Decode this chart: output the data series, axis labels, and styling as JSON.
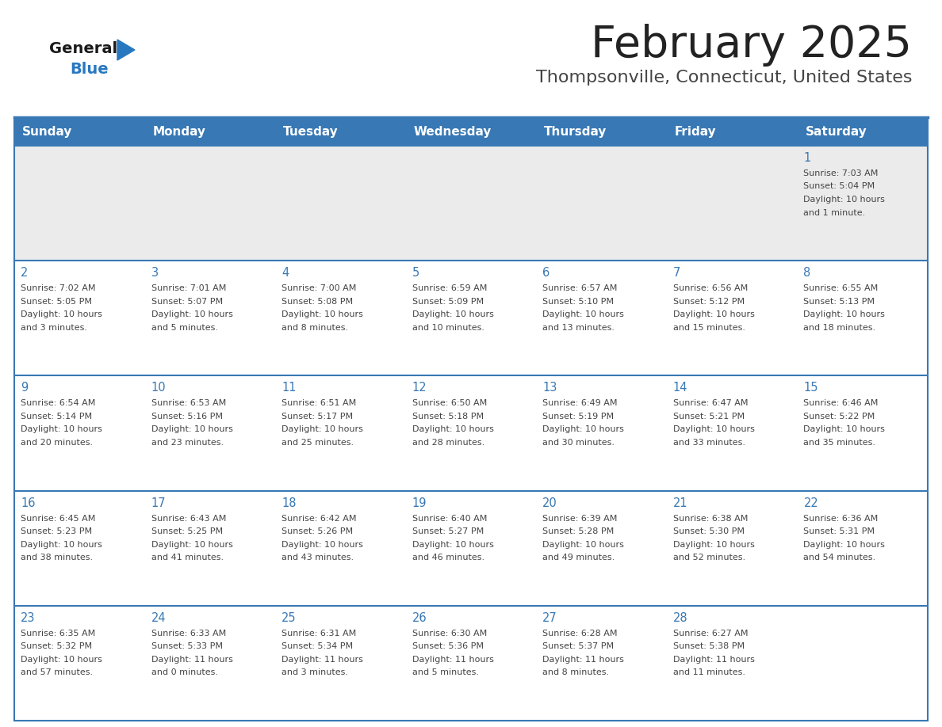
{
  "title": "February 2025",
  "subtitle": "Thompsonville, Connecticut, United States",
  "days_of_week": [
    "Sunday",
    "Monday",
    "Tuesday",
    "Wednesday",
    "Thursday",
    "Friday",
    "Saturday"
  ],
  "header_bg_color": "#3878b4",
  "header_text_color": "#ffffff",
  "cell_bg_color": "#ffffff",
  "row0_bg_color": "#ebebeb",
  "border_color": "#3878b4",
  "day_num_color": "#3878b4",
  "info_text_color": "#444444",
  "title_color": "#222222",
  "subtitle_color": "#444444",
  "background_color": "#ffffff",
  "logo_general_color": "#1a1a1a",
  "logo_blue_color": "#2878c0",
  "calendar_data": [
    {
      "day": 1,
      "col": 6,
      "row": 0,
      "sunrise": "7:03 AM",
      "sunset": "5:04 PM",
      "daylight": "10 hours and 1 minute."
    },
    {
      "day": 2,
      "col": 0,
      "row": 1,
      "sunrise": "7:02 AM",
      "sunset": "5:05 PM",
      "daylight": "10 hours and 3 minutes."
    },
    {
      "day": 3,
      "col": 1,
      "row": 1,
      "sunrise": "7:01 AM",
      "sunset": "5:07 PM",
      "daylight": "10 hours and 5 minutes."
    },
    {
      "day": 4,
      "col": 2,
      "row": 1,
      "sunrise": "7:00 AM",
      "sunset": "5:08 PM",
      "daylight": "10 hours and 8 minutes."
    },
    {
      "day": 5,
      "col": 3,
      "row": 1,
      "sunrise": "6:59 AM",
      "sunset": "5:09 PM",
      "daylight": "10 hours and 10 minutes."
    },
    {
      "day": 6,
      "col": 4,
      "row": 1,
      "sunrise": "6:57 AM",
      "sunset": "5:10 PM",
      "daylight": "10 hours and 13 minutes."
    },
    {
      "day": 7,
      "col": 5,
      "row": 1,
      "sunrise": "6:56 AM",
      "sunset": "5:12 PM",
      "daylight": "10 hours and 15 minutes."
    },
    {
      "day": 8,
      "col": 6,
      "row": 1,
      "sunrise": "6:55 AM",
      "sunset": "5:13 PM",
      "daylight": "10 hours and 18 minutes."
    },
    {
      "day": 9,
      "col": 0,
      "row": 2,
      "sunrise": "6:54 AM",
      "sunset": "5:14 PM",
      "daylight": "10 hours and 20 minutes."
    },
    {
      "day": 10,
      "col": 1,
      "row": 2,
      "sunrise": "6:53 AM",
      "sunset": "5:16 PM",
      "daylight": "10 hours and 23 minutes."
    },
    {
      "day": 11,
      "col": 2,
      "row": 2,
      "sunrise": "6:51 AM",
      "sunset": "5:17 PM",
      "daylight": "10 hours and 25 minutes."
    },
    {
      "day": 12,
      "col": 3,
      "row": 2,
      "sunrise": "6:50 AM",
      "sunset": "5:18 PM",
      "daylight": "10 hours and 28 minutes."
    },
    {
      "day": 13,
      "col": 4,
      "row": 2,
      "sunrise": "6:49 AM",
      "sunset": "5:19 PM",
      "daylight": "10 hours and 30 minutes."
    },
    {
      "day": 14,
      "col": 5,
      "row": 2,
      "sunrise": "6:47 AM",
      "sunset": "5:21 PM",
      "daylight": "10 hours and 33 minutes."
    },
    {
      "day": 15,
      "col": 6,
      "row": 2,
      "sunrise": "6:46 AM",
      "sunset": "5:22 PM",
      "daylight": "10 hours and 35 minutes."
    },
    {
      "day": 16,
      "col": 0,
      "row": 3,
      "sunrise": "6:45 AM",
      "sunset": "5:23 PM",
      "daylight": "10 hours and 38 minutes."
    },
    {
      "day": 17,
      "col": 1,
      "row": 3,
      "sunrise": "6:43 AM",
      "sunset": "5:25 PM",
      "daylight": "10 hours and 41 minutes."
    },
    {
      "day": 18,
      "col": 2,
      "row": 3,
      "sunrise": "6:42 AM",
      "sunset": "5:26 PM",
      "daylight": "10 hours and 43 minutes."
    },
    {
      "day": 19,
      "col": 3,
      "row": 3,
      "sunrise": "6:40 AM",
      "sunset": "5:27 PM",
      "daylight": "10 hours and 46 minutes."
    },
    {
      "day": 20,
      "col": 4,
      "row": 3,
      "sunrise": "6:39 AM",
      "sunset": "5:28 PM",
      "daylight": "10 hours and 49 minutes."
    },
    {
      "day": 21,
      "col": 5,
      "row": 3,
      "sunrise": "6:38 AM",
      "sunset": "5:30 PM",
      "daylight": "10 hours and 52 minutes."
    },
    {
      "day": 22,
      "col": 6,
      "row": 3,
      "sunrise": "6:36 AM",
      "sunset": "5:31 PM",
      "daylight": "10 hours and 54 minutes."
    },
    {
      "day": 23,
      "col": 0,
      "row": 4,
      "sunrise": "6:35 AM",
      "sunset": "5:32 PM",
      "daylight": "10 hours and 57 minutes."
    },
    {
      "day": 24,
      "col": 1,
      "row": 4,
      "sunrise": "6:33 AM",
      "sunset": "5:33 PM",
      "daylight": "11 hours and 0 minutes."
    },
    {
      "day": 25,
      "col": 2,
      "row": 4,
      "sunrise": "6:31 AM",
      "sunset": "5:34 PM",
      "daylight": "11 hours and 3 minutes."
    },
    {
      "day": 26,
      "col": 3,
      "row": 4,
      "sunrise": "6:30 AM",
      "sunset": "5:36 PM",
      "daylight": "11 hours and 5 minutes."
    },
    {
      "day": 27,
      "col": 4,
      "row": 4,
      "sunrise": "6:28 AM",
      "sunset": "5:37 PM",
      "daylight": "11 hours and 8 minutes."
    },
    {
      "day": 28,
      "col": 5,
      "row": 4,
      "sunrise": "6:27 AM",
      "sunset": "5:38 PM",
      "daylight": "11 hours and 11 minutes."
    }
  ]
}
